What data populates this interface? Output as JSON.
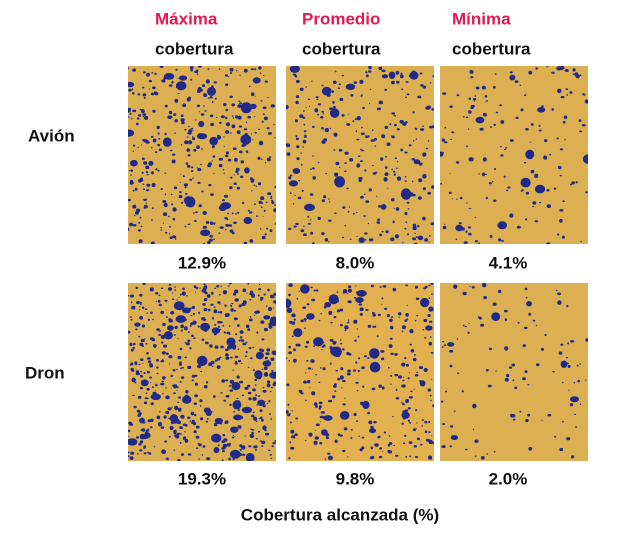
{
  "columns": [
    {
      "label": "Máxima",
      "sub": "cobertura"
    },
    {
      "label": "Promedio",
      "sub": "cobertura"
    },
    {
      "label": "Mínima",
      "sub": "cobertura"
    }
  ],
  "rows": [
    {
      "label": "Avión",
      "cells": [
        "12.9%",
        "8.0%",
        "4.1%"
      ]
    },
    {
      "label": "Dron",
      "cells": [
        "19.3%",
        "9.8%",
        "2.0%"
      ]
    }
  ],
  "footer": "Cobertura alcanzada (%)"
}
